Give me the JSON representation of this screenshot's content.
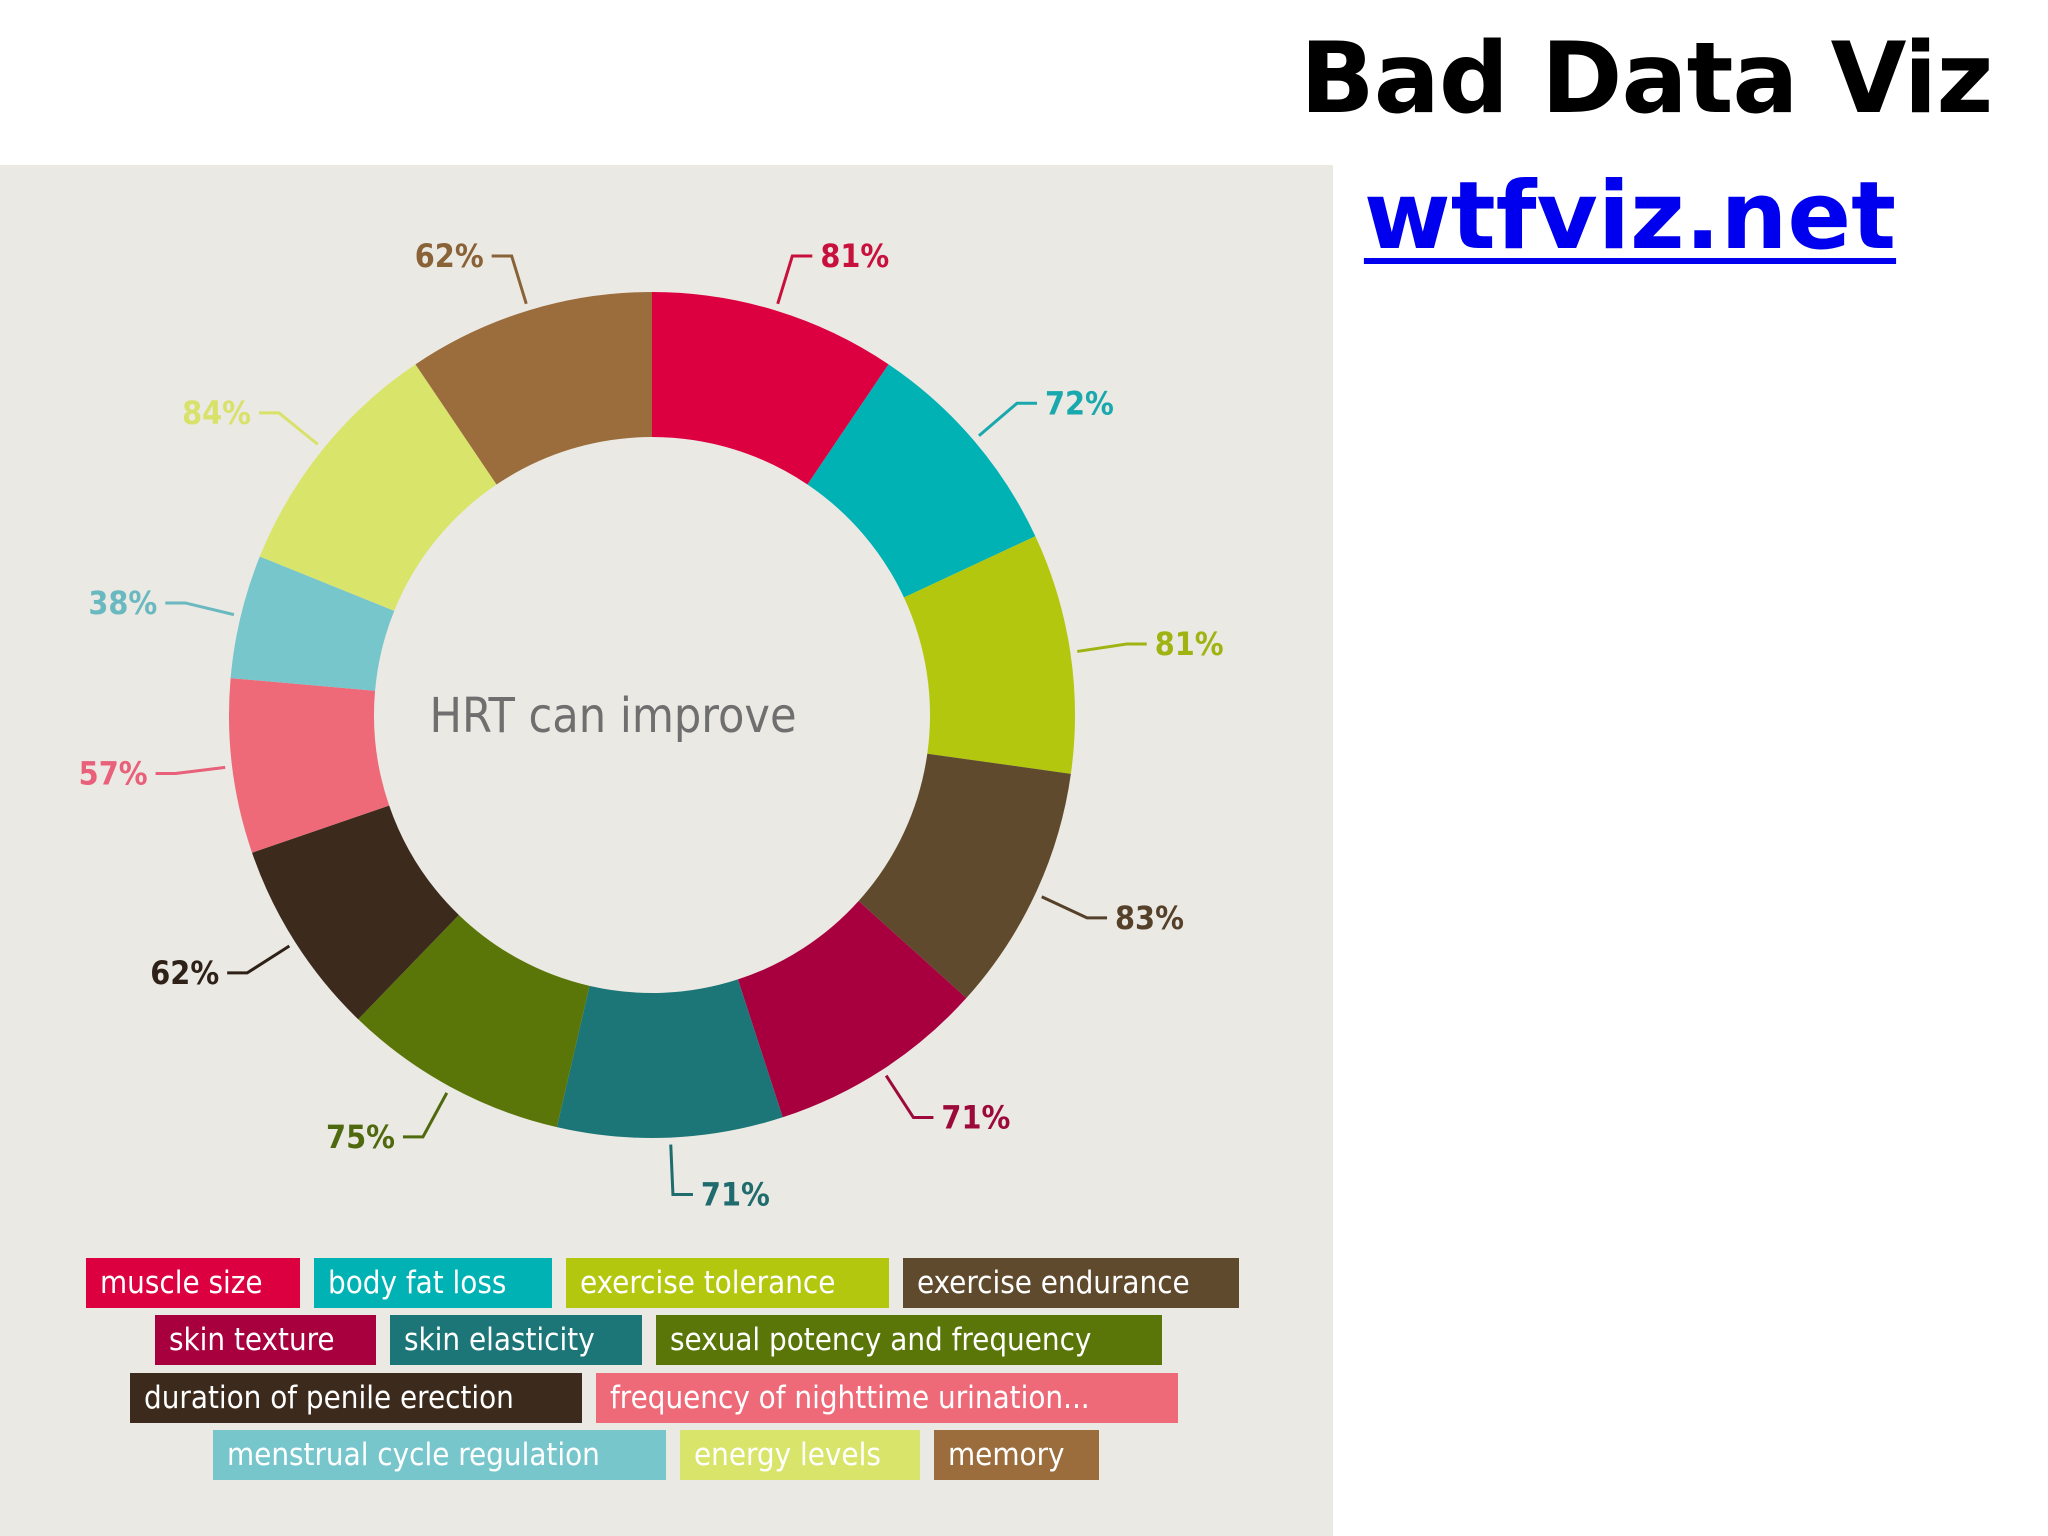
{
  "slide": {
    "title": "Bad Data Viz",
    "link": "wtfviz.net"
  },
  "chart_data": {
    "type": "pie",
    "center_text": "HRT can improve",
    "slices": [
      {
        "label": "muscle size",
        "value": 81,
        "value_label": "81%",
        "color": "#dd0040",
        "label_color": "#c8103d",
        "start_deg": 0,
        "end_deg": 34
      },
      {
        "label": "body fat loss",
        "value": 72,
        "value_label": "72%",
        "color": "#00b2b4",
        "label_color": "#18a8ad",
        "start_deg": 34,
        "end_deg": 65
      },
      {
        "label": "exercise tolerance",
        "value": 81,
        "value_label": "81%",
        "color": "#b3c70e",
        "label_color": "#9fb412",
        "start_deg": 65,
        "end_deg": 98
      },
      {
        "label": "exercise endurance",
        "value": 83,
        "value_label": "83%",
        "color": "#604a2d",
        "label_color": "#55412a",
        "start_deg": 98,
        "end_deg": 132
      },
      {
        "label": "skin texture",
        "value": 71,
        "value_label": "71%",
        "color": "#a8003f",
        "label_color": "#9c0a3b",
        "start_deg": 132,
        "end_deg": 162
      },
      {
        "label": "skin elasticity",
        "value": 71,
        "value_label": "71%",
        "color": "#1c7677",
        "label_color": "#1f6b6d",
        "start_deg": 162,
        "end_deg": 193
      },
      {
        "label": "sexual potency and frequency",
        "value": 75,
        "value_label": "75%",
        "color": "#5a7609",
        "label_color": "#4f6a0e",
        "start_deg": 193,
        "end_deg": 224
      },
      {
        "label": "duration of penile erection",
        "value": 62,
        "value_label": "62%",
        "color": "#3c2b1c",
        "label_color": "#2e2218",
        "start_deg": 224,
        "end_deg": 251
      },
      {
        "label": "frequency of nighttime urination...",
        "value": 57,
        "value_label": "57%",
        "color": "#ee6a78",
        "label_color": "#e8607a",
        "start_deg": 251,
        "end_deg": 275
      },
      {
        "label": "menstrual cycle regulation",
        "value": 38,
        "value_label": "38%",
        "color": "#77c6cc",
        "label_color": "#6ab8c0",
        "start_deg": 275,
        "end_deg": 292
      },
      {
        "label": "energy levels",
        "value": 84,
        "value_label": "84%",
        "color": "#d9e56a",
        "label_color": "#d8e26a",
        "start_deg": 292,
        "end_deg": 326
      },
      {
        "label": "memory",
        "value": 62,
        "value_label": "62%",
        "color": "#9b6d3c",
        "label_color": "#8a6238",
        "start_deg": 326,
        "end_deg": 360
      }
    ],
    "legend_rows": [
      [
        0,
        1,
        2,
        3
      ],
      [
        4,
        5,
        6
      ],
      [
        7,
        8
      ],
      [
        9,
        10,
        11
      ]
    ]
  }
}
